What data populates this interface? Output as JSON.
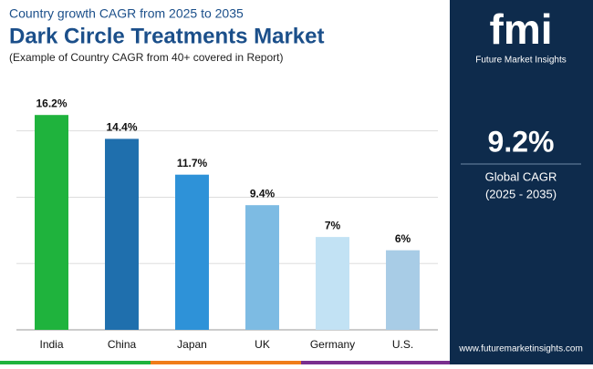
{
  "chart_data": {
    "type": "bar",
    "supertitle": "Country growth CAGR from 2025 to 2035",
    "title": "Dark Circle Treatments Market",
    "subtitle": "(Example of Country CAGR from 40+ covered in Report)",
    "categories": [
      "India",
      "China",
      "Japan",
      "UK",
      "Germany",
      "U.S."
    ],
    "values": [
      16.2,
      14.4,
      11.7,
      9.4,
      7,
      6
    ],
    "value_labels": [
      "16.2%",
      "14.4%",
      "11.7%",
      "9.4%",
      "7%",
      "6%"
    ],
    "colors": [
      "#1fb33d",
      "#1f6fad",
      "#2e92d8",
      "#7dbbe3",
      "#c2e2f4",
      "#a8cce6"
    ],
    "ylim": [
      0,
      18
    ],
    "yticks": [
      0,
      5,
      10,
      15
    ],
    "grid": true
  },
  "panel": {
    "logo": "fmi",
    "brand": "Future Market Insights",
    "value": "9.2%",
    "label": "Global CAGR",
    "period": "(2025 - 2035)",
    "website": "www.futuremarketinsights.com"
  }
}
